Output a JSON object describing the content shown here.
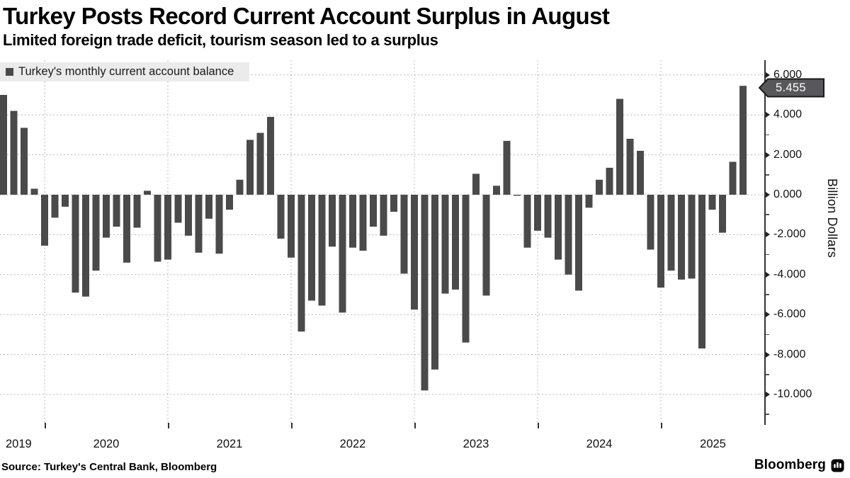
{
  "header": {
    "title": "Turkey Posts Record Current Account Surplus in August",
    "subtitle": "Limited foreign trade deficit, tourism season led to a surplus"
  },
  "legend": {
    "label": "Turkey's monthly current account balance"
  },
  "chart_data": {
    "type": "bar",
    "title": "Turkey Posts Record Current Account Surplus in August",
    "series_name": "Turkey's monthly current account balance",
    "unit": "billion USD",
    "ylabel": "Billion Dollars",
    "ylim": [
      -11.4,
      6.7
    ],
    "grid": "dotted",
    "legend_position": "top-left",
    "x": [
      "Aug 2019",
      "Sep 2019",
      "Oct 2019",
      "Nov 2019",
      "Dec 2019",
      "Jan 2020",
      "Feb 2020",
      "Mar 2020",
      "Apr 2020",
      "May 2020",
      "Jun 2020",
      "Jul 2020",
      "Aug 2020",
      "Sep 2020",
      "Oct 2020",
      "Nov 2020",
      "Dec 2020",
      "Jan 2021",
      "Feb 2021",
      "Mar 2021",
      "Apr 2021",
      "May 2021",
      "Jun 2021",
      "Jul 2021",
      "Aug 2021",
      "Sep 2021",
      "Oct 2021",
      "Nov 2021",
      "Dec 2021",
      "Jan 2022",
      "Feb 2022",
      "Mar 2022",
      "Apr 2022",
      "May 2022",
      "Jun 2022",
      "Jul 2022",
      "Aug 2022",
      "Sep 2022",
      "Oct 2022",
      "Nov 2022",
      "Dec 2022",
      "Jan 2023",
      "Feb 2023",
      "Mar 2023",
      "Apr 2023",
      "May 2023",
      "Jun 2023",
      "Jul 2023",
      "Aug 2023",
      "Sep 2023",
      "Oct 2023",
      "Nov 2023",
      "Dec 2023",
      "Jan 2024",
      "Feb 2024",
      "Mar 2024",
      "Apr 2024",
      "May 2024",
      "Jun 2024",
      "Jul 2024",
      "Aug 2024",
      "Sep 2024",
      "Oct 2024",
      "Nov 2024",
      "Dec 2024",
      "Jan 2025",
      "Feb 2025",
      "Mar 2025",
      "Apr 2025",
      "May 2025",
      "Jun 2025",
      "Jul 2025",
      "Aug 2025"
    ],
    "values": [
      5.0,
      4.2,
      3.35,
      0.3,
      -2.55,
      -1.15,
      -0.6,
      -4.9,
      -5.1,
      -3.8,
      -2.15,
      -1.6,
      -3.4,
      -1.65,
      0.2,
      -3.35,
      -3.25,
      -1.4,
      -2.05,
      -2.9,
      -1.2,
      -2.95,
      -0.75,
      0.75,
      2.75,
      3.1,
      3.9,
      -2.2,
      -3.15,
      -6.85,
      -5.3,
      -5.55,
      -2.6,
      -5.9,
      -2.65,
      -2.8,
      -1.6,
      -2.05,
      -0.85,
      -3.95,
      -5.75,
      -9.8,
      -8.75,
      -4.95,
      -4.75,
      -7.4,
      1.05,
      -5.05,
      0.45,
      2.7,
      -0.05,
      -2.65,
      -1.8,
      -2.15,
      -3.25,
      -4.0,
      -4.8,
      -0.65,
      0.75,
      1.35,
      4.8,
      2.8,
      2.2,
      -2.75,
      -4.65,
      -3.8,
      -4.25,
      -4.2,
      -7.7,
      -0.75,
      -1.9,
      1.65,
      5.455
    ],
    "yticks": {
      "values": [
        6,
        4,
        2,
        0,
        -2,
        -4,
        -6,
        -8,
        -10
      ],
      "labels": [
        "6.000",
        "4.000",
        "2.000",
        "0.000",
        "-2.000",
        "-4.000",
        "-6.000",
        "-8.000",
        "-10.000"
      ]
    },
    "minor_ytick_values": [
      5,
      3,
      1,
      -1,
      -3,
      -5,
      -7,
      -9,
      -11
    ],
    "xticks": {
      "years": [
        2019,
        2020,
        2021,
        2022,
        2023,
        2024,
        2025
      ],
      "labels": [
        "2019",
        "2020",
        "2021",
        "2022",
        "2023",
        "2024",
        "2025"
      ]
    },
    "callout": {
      "label": "5.455",
      "value": 5.455,
      "month": "Aug 2025"
    },
    "colors": {
      "bar": "#4a4a4a",
      "grid": "#b8b8b8",
      "axis": "#333333",
      "legend_bg": "#ebebeb",
      "callout_bg": "#58585a",
      "callout_border": "#1a1a1a",
      "callout_text": "#ffffff"
    }
  },
  "footer": {
    "source": "Source: Turkey's Central Bank, Bloomberg",
    "brand": "Bloomberg"
  }
}
